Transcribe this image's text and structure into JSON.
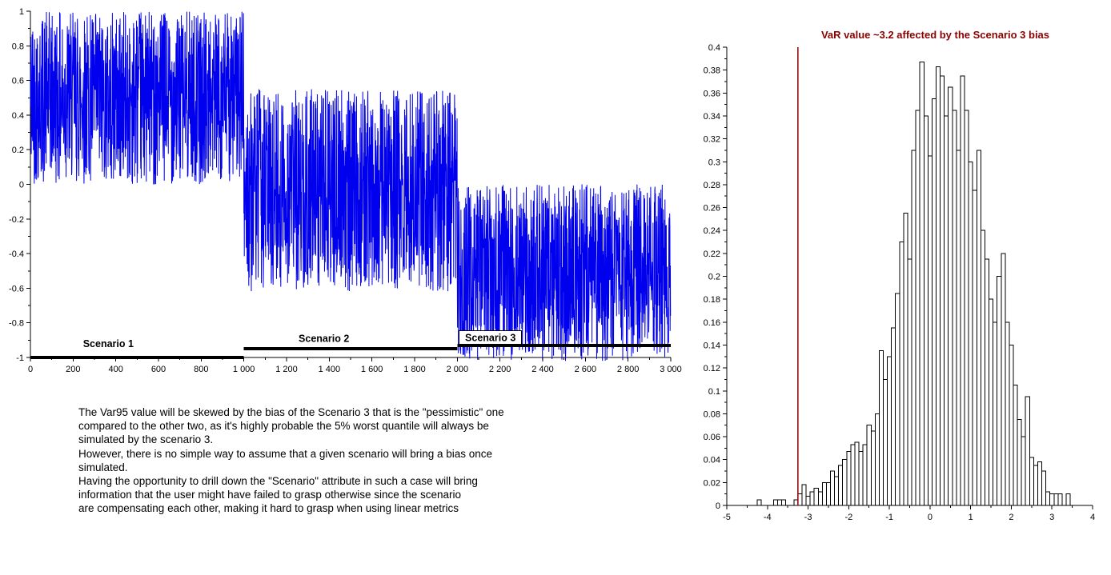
{
  "chart_data": [
    {
      "type": "line",
      "title": "",
      "xlabel": "",
      "ylabel": "",
      "xlim": [
        0,
        3000
      ],
      "ylim": [
        -1,
        1
      ],
      "grid": false,
      "legend_position": "none",
      "series_color": "#0000ee",
      "samples": 3000,
      "x_ticks": {
        "values": [
          0,
          200,
          400,
          600,
          800,
          1000,
          1200,
          1400,
          1600,
          1800,
          2000,
          2200,
          2400,
          2600,
          2800,
          3000
        ],
        "labels": [
          "0",
          "200",
          "400",
          "600",
          "800",
          "1 000",
          "1 200",
          "1 400",
          "1 600",
          "1 800",
          "2 000",
          "2 200",
          "2 400",
          "2 600",
          "2 800",
          "3 000"
        ],
        "minor_step": 100
      },
      "y_ticks": {
        "values": [
          -1,
          -0.8,
          -0.6,
          -0.4,
          -0.2,
          0,
          0.2,
          0.4,
          0.6,
          0.8,
          1
        ],
        "labels": [
          "-1",
          "-0.8",
          "-0.6",
          "-0.4",
          "-0.2",
          "0",
          "0.2",
          "0.4",
          "0.6",
          "0.8",
          "1"
        ],
        "minor_step": 0.1
      },
      "scenarios": [
        {
          "label": "Scenario 1",
          "x_start": 0,
          "x_end": 1000,
          "y_min": 0.0,
          "y_max": 1.0,
          "bar_y": -1.0,
          "label_x": 365,
          "label_y": -0.94,
          "boxed": false
        },
        {
          "label": "Scenario 2",
          "x_start": 1000,
          "x_end": 2000,
          "y_min": -0.62,
          "y_max": 0.55,
          "bar_y": -0.95,
          "label_x": 1375,
          "label_y": -0.91,
          "boxed": false
        },
        {
          "label": "Scenario 3",
          "x_start": 2000,
          "x_end": 3000,
          "y_min": -1.02,
          "y_max": 0.0,
          "bar_y": -0.93,
          "label_x": 2155,
          "label_y": -0.905,
          "boxed": true
        }
      ]
    },
    {
      "type": "bar",
      "title": "VaR value ~3.2 affected by the Scenario 3 bias",
      "title_color": "#8b0000",
      "xlabel": "",
      "ylabel": "",
      "xlim": [
        -5,
        4
      ],
      "ylim": [
        0,
        0.4
      ],
      "grid": false,
      "legend_position": "none",
      "bin_width": 0.1,
      "bar_fill": "#ffffff",
      "bar_stroke": "#000000",
      "vline": {
        "x": -3.25,
        "color": "#8b0000"
      },
      "x_ticks": {
        "values": [
          -5,
          -4,
          -3,
          -2,
          -1,
          0,
          1,
          2,
          3,
          4
        ],
        "labels": [
          "-5",
          "-4",
          "-3",
          "-2",
          "-1",
          "0",
          "1",
          "2",
          "3",
          "4"
        ],
        "minor_step": 0.5
      },
      "y_ticks": {
        "values": [
          0,
          0.02,
          0.04,
          0.06,
          0.08,
          0.1,
          0.12,
          0.14,
          0.16,
          0.18,
          0.2,
          0.22,
          0.24,
          0.26,
          0.28,
          0.3,
          0.32,
          0.34,
          0.36,
          0.38,
          0.4
        ],
        "labels": [
          "0",
          "0.02",
          "0.04",
          "0.06",
          "0.08",
          "0.1",
          "0.12",
          "0.14",
          "0.16",
          "0.18",
          "0.2",
          "0.22",
          "0.24",
          "0.26",
          "0.28",
          "0.3",
          "0.32",
          "0.34",
          "0.36",
          "0.38",
          "0.4"
        ],
        "minor_step": 0.01
      },
      "bars": [
        [
          -4.2,
          0.005
        ],
        [
          -3.8,
          0.005
        ],
        [
          -3.7,
          0.005
        ],
        [
          -3.6,
          0.005
        ],
        [
          -3.3,
          0.005
        ],
        [
          -3.2,
          0.01
        ],
        [
          -3.1,
          0.018
        ],
        [
          -3.0,
          0.008
        ],
        [
          -2.9,
          0.012
        ],
        [
          -2.8,
          0.015
        ],
        [
          -2.7,
          0.012
        ],
        [
          -2.6,
          0.02
        ],
        [
          -2.5,
          0.02
        ],
        [
          -2.4,
          0.03
        ],
        [
          -2.3,
          0.025
        ],
        [
          -2.2,
          0.035
        ],
        [
          -2.1,
          0.04
        ],
        [
          -2.0,
          0.047
        ],
        [
          -1.9,
          0.053
        ],
        [
          -1.8,
          0.055
        ],
        [
          -1.7,
          0.047
        ],
        [
          -1.6,
          0.053
        ],
        [
          -1.5,
          0.07
        ],
        [
          -1.4,
          0.065
        ],
        [
          -1.3,
          0.08
        ],
        [
          -1.2,
          0.135
        ],
        [
          -1.1,
          0.11
        ],
        [
          -1.0,
          0.13
        ],
        [
          -0.9,
          0.155
        ],
        [
          -0.8,
          0.185
        ],
        [
          -0.7,
          0.23
        ],
        [
          -0.6,
          0.255
        ],
        [
          -0.5,
          0.215
        ],
        [
          -0.4,
          0.31
        ],
        [
          -0.3,
          0.345
        ],
        [
          -0.2,
          0.387
        ],
        [
          -0.1,
          0.34
        ],
        [
          0.0,
          0.305
        ],
        [
          0.1,
          0.355
        ],
        [
          0.2,
          0.383
        ],
        [
          0.3,
          0.375
        ],
        [
          0.4,
          0.34
        ],
        [
          0.5,
          0.365
        ],
        [
          0.6,
          0.345
        ],
        [
          0.7,
          0.31
        ],
        [
          0.8,
          0.375
        ],
        [
          0.9,
          0.345
        ],
        [
          1.0,
          0.3
        ],
        [
          1.1,
          0.275
        ],
        [
          1.2,
          0.31
        ],
        [
          1.3,
          0.24
        ],
        [
          1.4,
          0.215
        ],
        [
          1.5,
          0.18
        ],
        [
          1.6,
          0.16
        ],
        [
          1.7,
          0.2
        ],
        [
          1.8,
          0.22
        ],
        [
          1.9,
          0.16
        ],
        [
          2.0,
          0.14
        ],
        [
          2.1,
          0.105
        ],
        [
          2.2,
          0.075
        ],
        [
          2.3,
          0.06
        ],
        [
          2.4,
          0.095
        ],
        [
          2.5,
          0.042
        ],
        [
          2.6,
          0.035
        ],
        [
          2.7,
          0.038
        ],
        [
          2.8,
          0.03
        ],
        [
          2.9,
          0.012
        ],
        [
          3.0,
          0.01
        ],
        [
          3.1,
          0.01
        ],
        [
          3.2,
          0.01
        ],
        [
          3.4,
          0.01
        ]
      ]
    }
  ],
  "notes": {
    "lines": [
      "The Var95 value will be skewed by the bias of the Scenario 3 that is the \"pessimistic\" one",
      "compared to the other two, as it's highly probable the 5% worst quantile will always be",
      "simulated by the scenario 3.",
      "However, there is no simple way to assume that a given scenario will bring a bias once",
      "simulated.",
      "Having the opportunity to drill down the \"Scenario\" attribute in such a case will bring",
      "information that the user might have failed to grasp otherwise since the scenario",
      "are compensating each other, making it hard to grasp when using linear metrics"
    ]
  }
}
